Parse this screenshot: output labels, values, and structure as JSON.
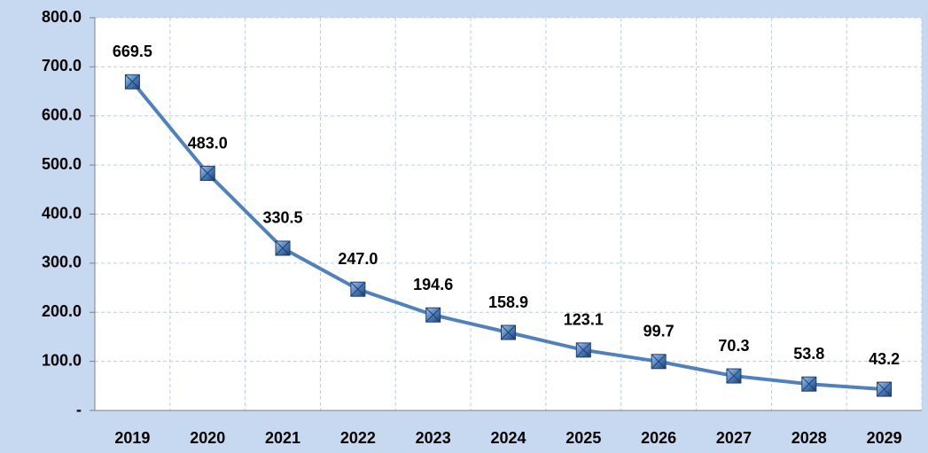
{
  "chart_data": {
    "type": "line",
    "categories": [
      "2019",
      "2020",
      "2021",
      "2022",
      "2023",
      "2024",
      "2025",
      "2026",
      "2027",
      "2028",
      "2029"
    ],
    "values": [
      669.5,
      483.0,
      330.5,
      247.0,
      194.6,
      158.9,
      123.1,
      99.7,
      70.3,
      53.8,
      43.2
    ],
    "value_labels": [
      "669.5",
      "483.0",
      "330.5",
      "247.0",
      "194.6",
      "158.9",
      "123.1",
      "99.7",
      "70.3",
      "53.8",
      "43.2"
    ],
    "color": "#4f81bd",
    "ylim": [
      0,
      800
    ],
    "yticks": [
      {
        "value": 0,
        "label": "-"
      },
      {
        "value": 100,
        "label": "100.0"
      },
      {
        "value": 200,
        "label": "200.0"
      },
      {
        "value": 300,
        "label": "300.0"
      },
      {
        "value": 400,
        "label": "400.0"
      },
      {
        "value": 500,
        "label": "500.0"
      },
      {
        "value": 600,
        "label": "600.0"
      },
      {
        "value": 700,
        "label": "700.0"
      },
      {
        "value": 800,
        "label": "800.0"
      }
    ],
    "grid": true
  }
}
